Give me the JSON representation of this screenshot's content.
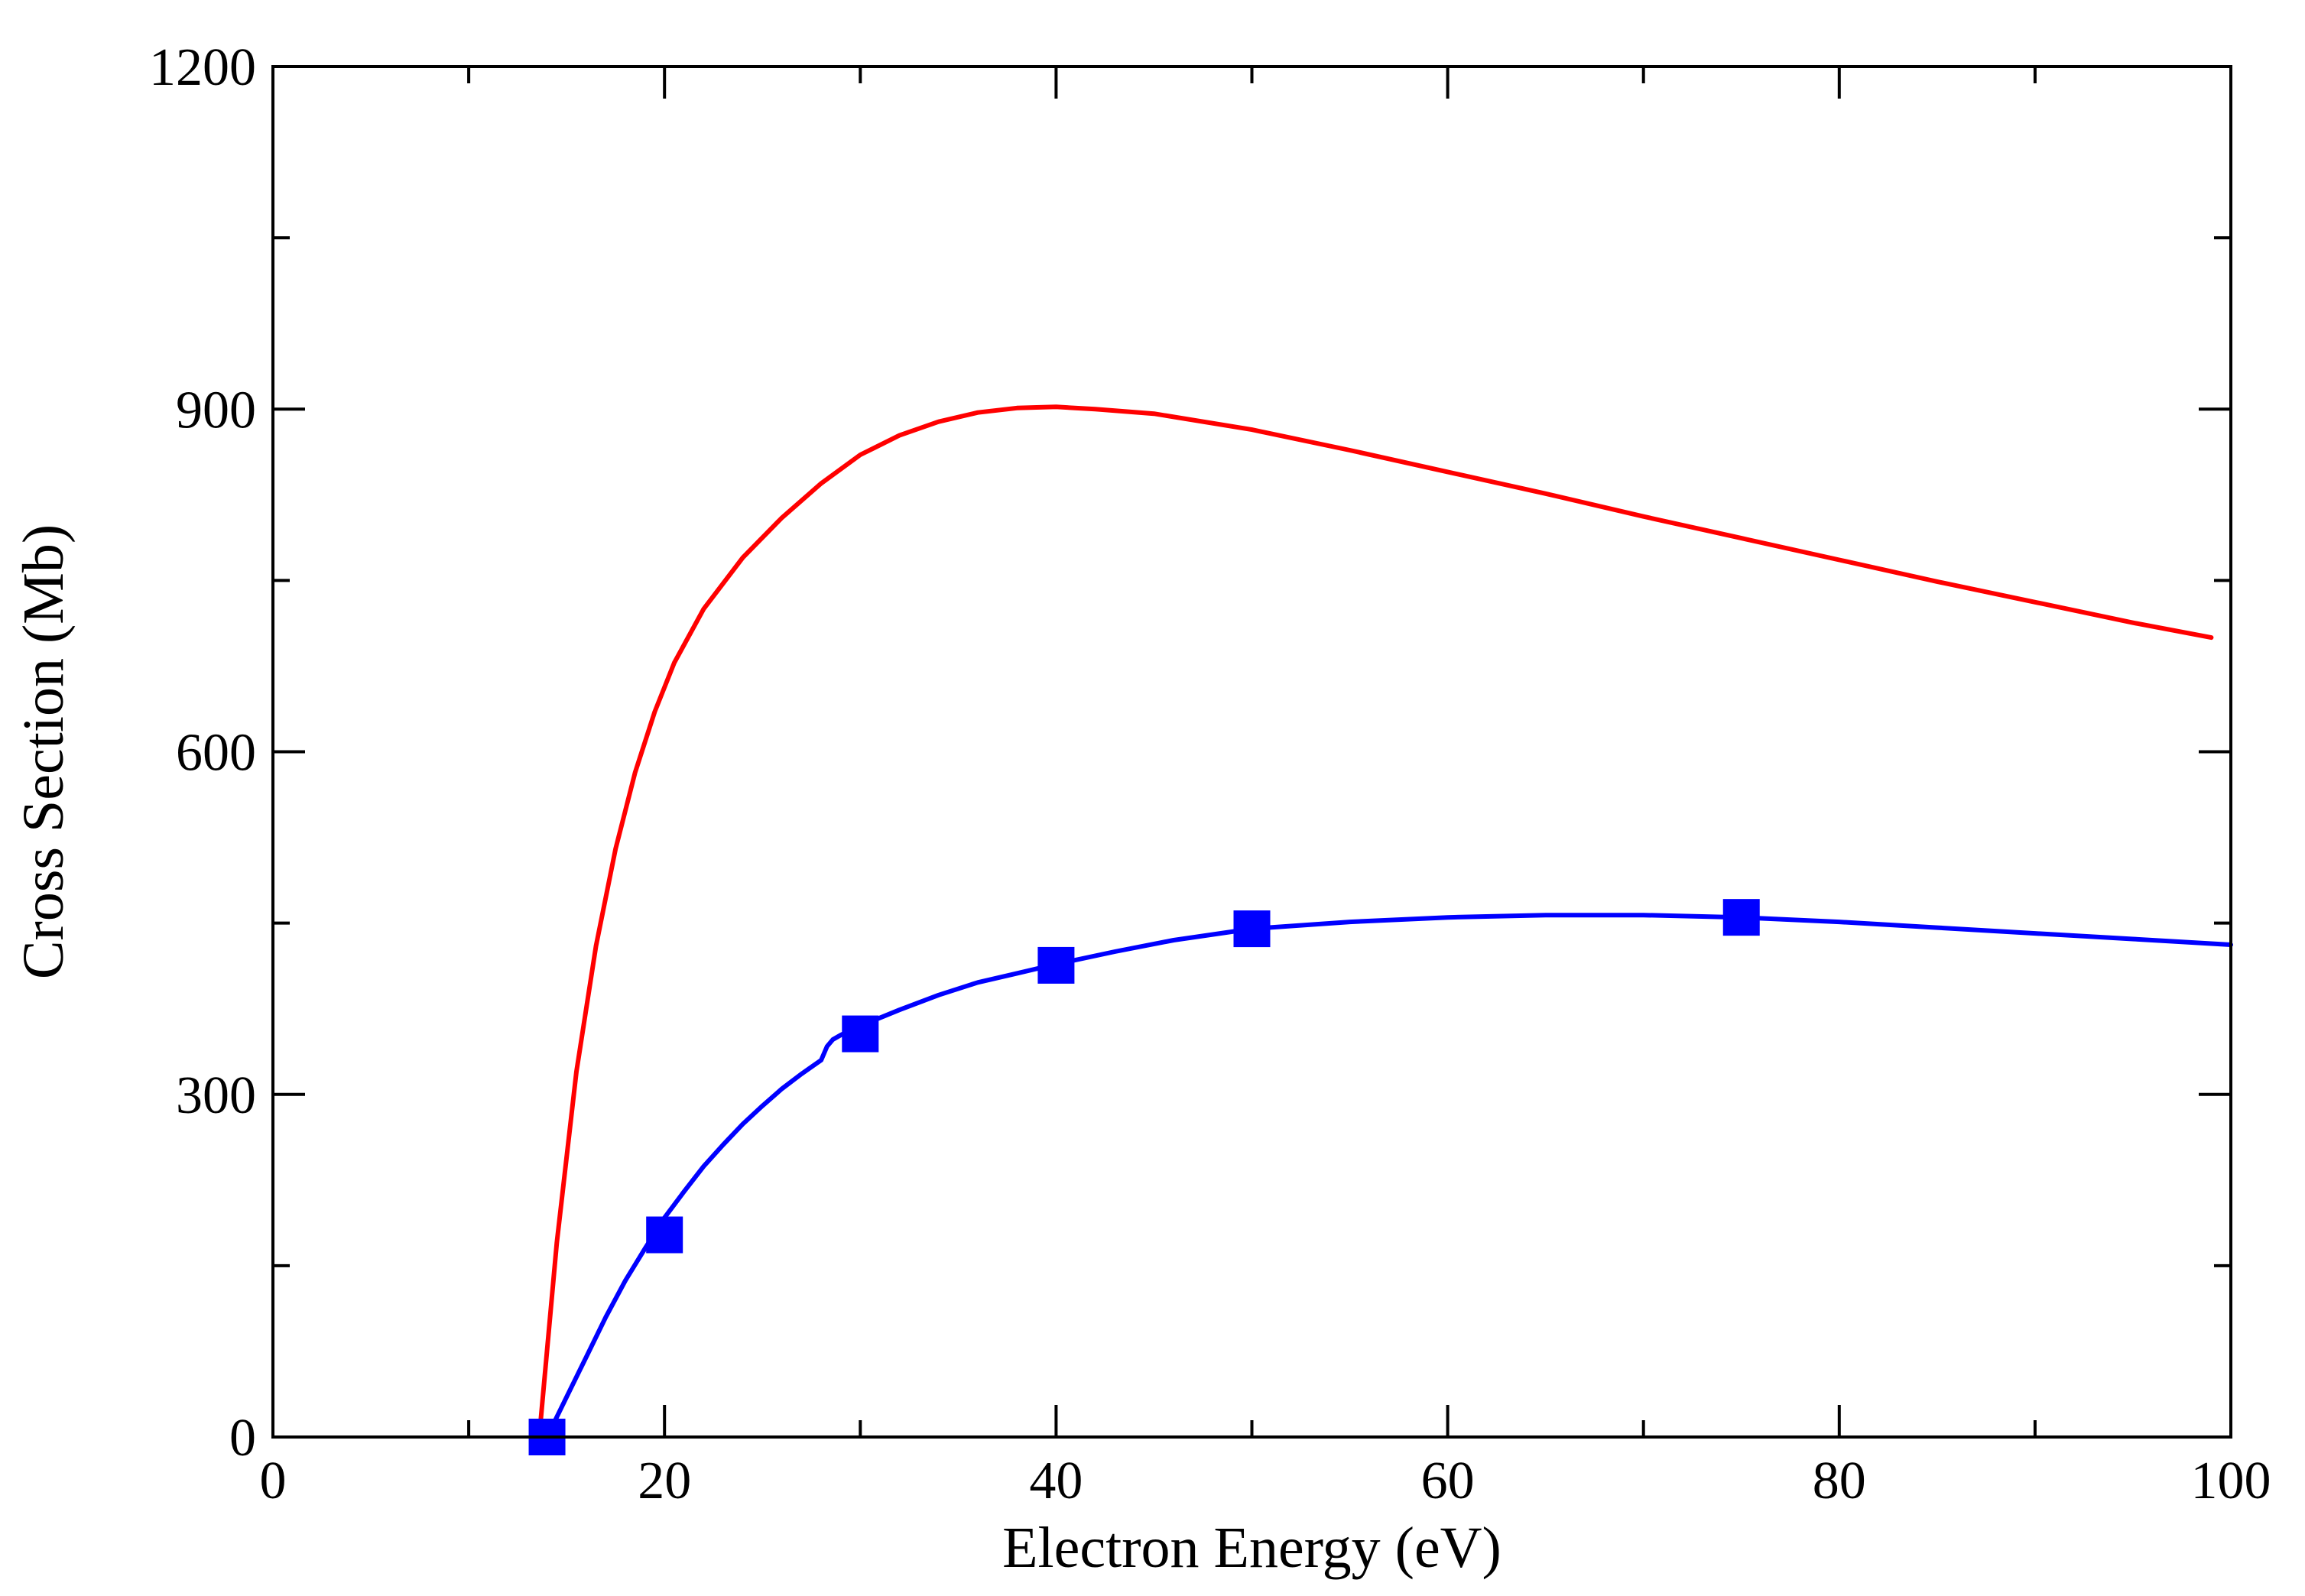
{
  "chart_data": {
    "type": "line",
    "title": "",
    "xlabel": "Electron Energy (eV)",
    "ylabel": "Cross Section (Mb)",
    "xlim": [
      0,
      100
    ],
    "ylim": [
      0,
      1200
    ],
    "x_ticks": [
      0,
      20,
      40,
      60,
      80,
      100
    ],
    "x_minor_ticks": [
      10,
      30,
      50,
      70,
      90
    ],
    "y_ticks": [
      0,
      300,
      600,
      900,
      1200
    ],
    "y_minor_ticks": [
      150,
      450,
      750,
      1050
    ],
    "grid": false,
    "series": [
      {
        "name": "red curve",
        "color": "#ff0000",
        "marker": "none",
        "x": [
          13.6,
          14.5,
          15.5,
          16.5,
          17.5,
          18.5,
          19.5,
          20.5,
          22,
          24,
          26,
          28,
          30,
          32,
          34,
          36,
          38,
          40,
          42,
          45,
          50,
          55,
          60,
          65,
          70,
          75,
          80,
          85,
          90,
          95,
          99
        ],
        "y": [
          0,
          170,
          320,
          430,
          515,
          582,
          635,
          678,
          725,
          770,
          805,
          835,
          860,
          877,
          889,
          897,
          901,
          902,
          900,
          896,
          882,
          864,
          845,
          826,
          806,
          787,
          768,
          749,
          731,
          713,
          700
        ]
      },
      {
        "name": "blue curve",
        "color": "#0000ff",
        "marker": "none",
        "x": [
          14,
          15,
          16,
          17,
          18,
          19,
          20,
          21,
          22,
          23,
          24,
          25,
          26,
          27,
          28,
          28.3,
          28.6,
          29,
          30,
          32,
          34,
          36,
          38,
          40,
          43,
          46,
          50,
          55,
          60,
          65,
          70,
          75,
          80,
          85,
          90,
          95,
          100
        ],
        "y": [
          0,
          35,
          70,
          105,
          137,
          165,
          192,
          215,
          237,
          256,
          274,
          290,
          305,
          318,
          330,
          342,
          348,
          352,
          360,
          374,
          387,
          398,
          406,
          414,
          425,
          435,
          445,
          451,
          455,
          457,
          457,
          455,
          451,
          446,
          441,
          436,
          431
        ]
      },
      {
        "name": "blue squares",
        "color": "#0000ff",
        "marker": "square",
        "x": [
          14,
          20,
          30,
          40,
          50,
          75
        ],
        "y": [
          0,
          177,
          353,
          413,
          445,
          455
        ]
      }
    ]
  }
}
